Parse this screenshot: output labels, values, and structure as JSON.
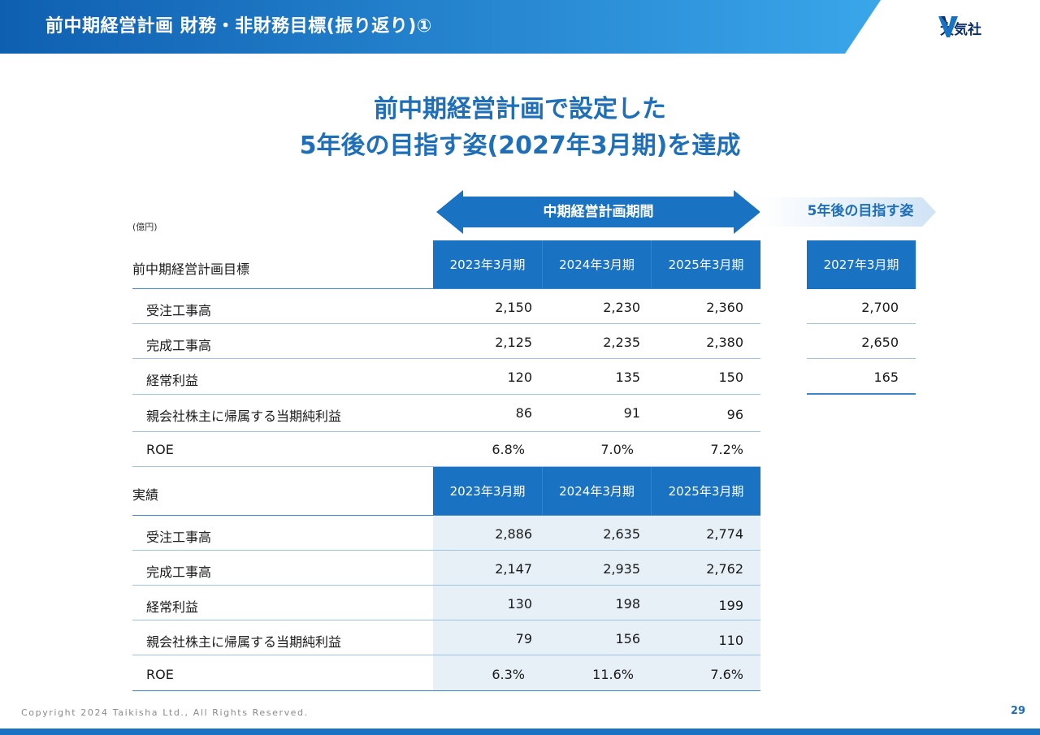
{
  "header": {
    "title": "前中期経営計画 財務・非財務目標(振り返り)①"
  },
  "logo": {
    "text": "大気社",
    "icon": "taikisha-v-logo-icon"
  },
  "headline": {
    "line1": "前中期経営計画で設定した",
    "line2": "5年後の目指す姿(2027年3月期)を達成"
  },
  "unit": "(億円)",
  "period_label": "中期経営計画期間",
  "future_label": "5年後の目指す姿",
  "plan": {
    "section": "前中期経営計画目標",
    "years": [
      "2023年3月期",
      "2024年3月期",
      "2025年3月期"
    ],
    "future_year": "2027年3月期",
    "rows": [
      {
        "label": "受注工事高",
        "values": [
          "2,150",
          "2,230",
          "2,360"
        ],
        "future": "2,700"
      },
      {
        "label": "完成工事高",
        "values": [
          "2,125",
          "2,235",
          "2,380"
        ],
        "future": "2,650"
      },
      {
        "label": "経常利益",
        "values": [
          "120",
          "135",
          "150"
        ],
        "future": "165"
      },
      {
        "label": "親会社株主に帰属する当期純利益",
        "values": [
          "86",
          "91",
          "96"
        ]
      },
      {
        "label": "ROE",
        "values": [
          "6.8%",
          "7.0%",
          "7.2%"
        ]
      }
    ]
  },
  "actual": {
    "section": "実績",
    "years": [
      "2023年3月期",
      "2024年3月期",
      "2025年3月期"
    ],
    "rows": [
      {
        "label": "受注工事高",
        "values": [
          "2,886",
          "2,635",
          "2,774"
        ]
      },
      {
        "label": "完成工事高",
        "values": [
          "2,147",
          "2,935",
          "2,762"
        ]
      },
      {
        "label": "経常利益",
        "values": [
          "130",
          "198",
          "199"
        ]
      },
      {
        "label": "親会社株主に帰属する当期純利益",
        "values": [
          "79",
          "156",
          "110"
        ]
      },
      {
        "label": "ROE",
        "values": [
          "6.3%",
          "11.6%",
          "7.6%"
        ]
      }
    ]
  },
  "footer": {
    "copyright": "Copyright 2024 Taikisha Ltd., All Rights Reserved.",
    "page": "29"
  },
  "colors": {
    "primary": "#1a73c2",
    "accent": "#1e6fb8",
    "light": "#e7f0f7",
    "header_gradient_end": "#3aa6ea"
  }
}
